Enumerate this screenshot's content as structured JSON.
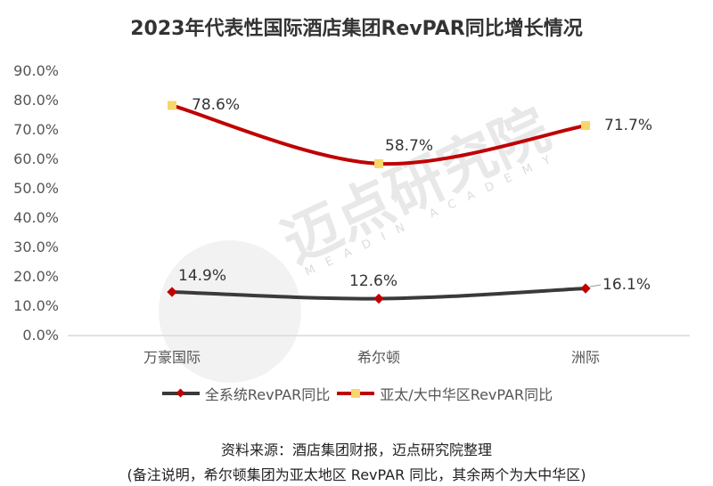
{
  "chart_data": {
    "type": "line",
    "title": "2023年代表性国际酒店集团RevPAR同比增长情况",
    "xlabel": "",
    "ylabel": "",
    "categories": [
      "万豪国际",
      "希尔顿",
      "洲际"
    ],
    "yticks": [
      "90.0%",
      "80.0%",
      "70.0%",
      "60.0%",
      "50.0%",
      "40.0%",
      "30.0%",
      "20.0%",
      "10.0%",
      "0.0%"
    ],
    "ylim": [
      0,
      90
    ],
    "grid": false,
    "legend_position": "bottom",
    "series": [
      {
        "name": "全系统RevPAR同比",
        "values": [
          14.9,
          12.6,
          16.1
        ],
        "labels": [
          "14.9%",
          "12.6%",
          "16.1%"
        ],
        "color": "#3a3a3a",
        "marker": "diamond",
        "marker_color": "#c00000"
      },
      {
        "name": "亚太/大中华区RevPAR同比",
        "values": [
          78.6,
          58.7,
          71.7
        ],
        "labels": [
          "78.6%",
          "58.7%",
          "71.7%"
        ],
        "color": "#c00000",
        "marker": "square",
        "marker_color": "#f7d66b"
      }
    ]
  },
  "watermark": {
    "text": "迈点研究院",
    "subtext": "MEADIN ACADEMY"
  },
  "footer": {
    "source": "资料来源：酒店集团财报，迈点研究院整理",
    "note": "(备注说明，希尔顿集团为亚太地区 RevPAR 同比，其余两个为大中华区)"
  }
}
